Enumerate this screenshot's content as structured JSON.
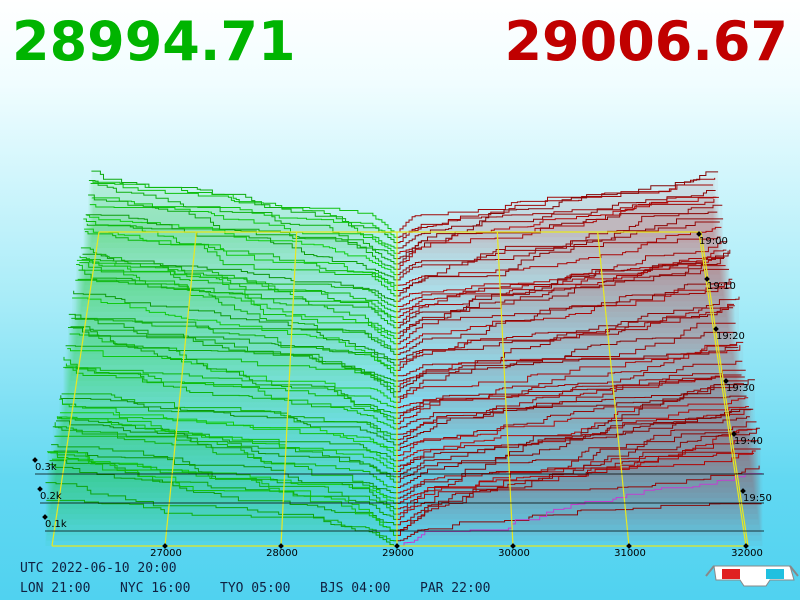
{
  "bid_price": "28994.71",
  "ask_price": "29006.67",
  "price_axis": {
    "labels": [
      "27000",
      "28000",
      "29000",
      "30000",
      "31000",
      "32000"
    ]
  },
  "depth_axis": {
    "labels": [
      "0.3k",
      "0.2k",
      "0.1k"
    ]
  },
  "time_axis": {
    "labels": [
      "19:00",
      "19:10",
      "19:20",
      "19:30",
      "19:40",
      "19:50"
    ]
  },
  "footer": {
    "utc": "UTC 2022-06-10 20:00",
    "clocks": [
      "LON 21:00",
      "NYC 16:00",
      "TYO 05:00",
      "BJS 04:00",
      "PAR 22:00"
    ]
  }
}
